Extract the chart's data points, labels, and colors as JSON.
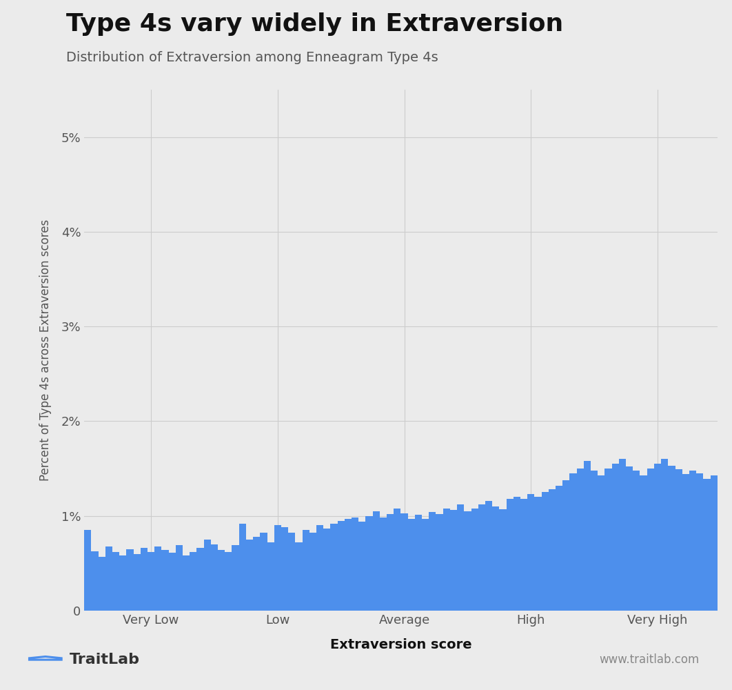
{
  "title": "Type 4s vary widely in Extraversion",
  "subtitle": "Distribution of Extraversion among Enneagram Type 4s",
  "xlabel": "Extraversion score",
  "ylabel": "Percent of Type 4s across Extraversion scores",
  "bar_color": "#4d8fec",
  "background_color": "#ebebeb",
  "ytick_labels": [
    "0",
    "1%",
    "2%",
    "3%",
    "4%",
    "5%"
  ],
  "xtick_labels": [
    "Very Low",
    "Low",
    "Average",
    "High",
    "Very High"
  ],
  "footer_left": "TraitLab",
  "footer_right": "www.traitlab.com",
  "bar_values": [
    0.0085,
    0.0063,
    0.0057,
    0.0068,
    0.0062,
    0.0058,
    0.0065,
    0.006,
    0.0066,
    0.0062,
    0.0068,
    0.0064,
    0.0061,
    0.0069,
    0.0058,
    0.0062,
    0.0066,
    0.0075,
    0.007,
    0.0064,
    0.0062,
    0.0069,
    0.0092,
    0.0075,
    0.0078,
    0.0082,
    0.0072,
    0.009,
    0.0088,
    0.0082,
    0.0072,
    0.0085,
    0.0082,
    0.009,
    0.0087,
    0.0092,
    0.0095,
    0.0097,
    0.0098,
    0.0094,
    0.01,
    0.0105,
    0.0098,
    0.0102,
    0.0108,
    0.0103,
    0.0097,
    0.0101,
    0.0097,
    0.0104,
    0.0102,
    0.0108,
    0.0106,
    0.0112,
    0.0105,
    0.0108,
    0.0112,
    0.0116,
    0.011,
    0.0107,
    0.0118,
    0.012,
    0.0118,
    0.0123,
    0.012,
    0.0125,
    0.0128,
    0.0132,
    0.0138,
    0.0145,
    0.015,
    0.0158,
    0.0148,
    0.0143,
    0.015,
    0.0155,
    0.016,
    0.0152,
    0.0148,
    0.0143,
    0.015,
    0.0155,
    0.016,
    0.0153,
    0.0149,
    0.0144,
    0.0148,
    0.0145,
    0.0139,
    0.0143
  ],
  "n_bars": 90
}
